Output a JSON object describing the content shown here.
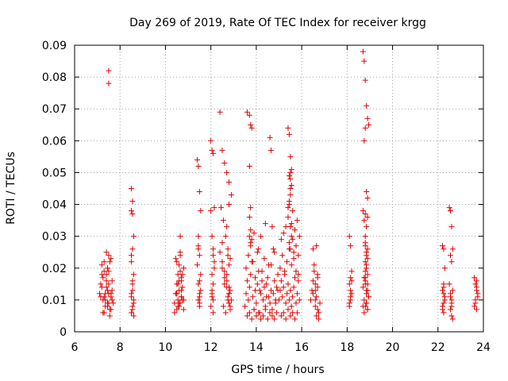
{
  "chart_data": {
    "type": "scatter",
    "title": "Day 269 of 2019, Rate Of TEC Index for receiver krgg",
    "xlabel": "GPS time / hours",
    "ylabel": "ROTI / TECUs",
    "xlim": [
      6,
      24
    ],
    "ylim": [
      0,
      0.09
    ],
    "x_ticks": [
      6,
      8,
      10,
      12,
      14,
      16,
      18,
      20,
      22,
      24
    ],
    "y_ticks": [
      0,
      0.01,
      0.02,
      0.03,
      0.04,
      0.05,
      0.06,
      0.07,
      0.08,
      0.09
    ],
    "x_tick_labels": [
      "6",
      "8",
      "10",
      "12",
      "14",
      "16",
      "18",
      "20",
      "22",
      "24"
    ],
    "y_tick_labels": [
      "0",
      "0.01",
      "0.02",
      "0.03",
      "0.04",
      "0.05",
      "0.06",
      "0.07",
      "0.08",
      "0.09"
    ],
    "grid": true,
    "marker": "plus",
    "color": "#e00000",
    "series": [
      {
        "x": [
          7.1,
          7.15,
          7.2,
          7.25,
          7.3,
          7.35,
          7.4,
          7.45,
          7.5,
          7.55,
          7.6,
          7.65,
          7.7,
          7.2,
          7.3,
          7.4,
          7.5,
          7.6,
          7.25,
          7.35,
          7.45,
          7.55,
          7.65,
          7.3,
          7.4,
          7.5,
          7.45,
          7.5,
          7.4,
          7.6,
          7.2,
          7.3,
          7.5,
          7.6,
          7.35,
          7.45,
          7.55,
          7.15,
          7.25,
          7.65,
          7.5,
          7.5,
          8.5,
          8.55,
          8.5,
          8.6,
          8.55,
          8.5,
          8.6,
          8.55,
          8.5,
          8.6,
          8.55,
          8.5,
          8.55,
          8.6,
          8.5,
          8.55,
          8.55,
          8.5,
          8.55,
          8.6,
          10.4,
          10.45,
          10.5,
          10.55,
          10.6,
          10.65,
          10.7,
          10.75,
          10.8,
          10.5,
          10.6,
          10.7,
          10.4,
          10.55,
          10.65,
          10.75,
          10.5,
          10.6,
          10.7,
          10.8,
          10.45,
          10.55,
          10.65,
          10.5,
          10.6,
          10.7,
          10.55,
          10.65,
          10.75,
          10.5,
          10.6,
          10.65,
          10.7,
          10.8,
          11.4,
          11.45,
          11.5,
          11.55,
          11.45,
          11.5,
          11.4,
          11.55,
          11.45,
          11.5,
          11.5,
          11.45,
          11.5,
          11.45,
          11.5,
          11.55,
          11.45,
          11.5,
          12.0,
          12.05,
          12.1,
          12.15,
          12.0,
          12.05,
          12.1,
          12.15,
          12.05,
          12.1,
          12.05,
          12.1,
          12.0,
          12.1,
          12.05,
          12.15,
          12.1,
          12.05,
          12.4,
          12.5,
          12.6,
          12.7,
          12.8,
          12.9,
          12.45,
          12.55,
          12.65,
          12.75,
          12.85,
          12.5,
          12.6,
          12.7,
          12.8,
          12.9,
          12.55,
          12.65,
          12.75,
          12.85,
          12.6,
          12.7,
          12.8,
          12.75,
          12.8,
          12.85,
          12.8,
          12.7,
          12.6,
          12.5,
          12.4,
          12.75,
          12.8,
          12.85,
          12.8,
          12.7,
          12.5,
          13.5,
          13.55,
          13.6,
          13.65,
          13.7,
          13.75,
          13.8,
          13.85,
          13.9,
          13.95,
          14.0,
          14.05,
          14.1,
          14.15,
          14.2,
          14.25,
          14.3,
          14.35,
          14.4,
          14.45,
          14.5,
          14.55,
          14.6,
          14.65,
          14.7,
          14.75,
          14.8,
          14.85,
          14.9,
          14.95,
          13.55,
          13.65,
          13.75,
          13.85,
          13.95,
          14.05,
          14.15,
          14.25,
          14.35,
          14.45,
          14.55,
          14.65,
          14.75,
          14.85,
          14.95,
          13.6,
          13.7,
          13.8,
          13.9,
          14.0,
          14.1,
          14.2,
          14.3,
          14.4,
          14.5,
          14.6,
          14.7,
          14.8,
          14.9,
          13.6,
          13.7,
          13.75,
          13.8,
          13.7,
          13.75,
          13.7,
          13.75,
          13.7,
          13.8,
          13.75,
          14.2,
          14.4,
          14.6,
          14.65,
          14.7,
          14.8,
          13.9,
          14.1,
          15.0,
          15.05,
          15.1,
          15.15,
          15.2,
          15.25,
          15.3,
          15.35,
          15.4,
          15.45,
          15.5,
          15.55,
          15.6,
          15.65,
          15.7,
          15.75,
          15.8,
          15.85,
          15.9,
          15.05,
          15.15,
          15.25,
          15.35,
          15.45,
          15.55,
          15.65,
          15.75,
          15.85,
          15.1,
          15.2,
          15.3,
          15.4,
          15.5,
          15.6,
          15.7,
          15.8,
          15.4,
          15.45,
          15.5,
          15.55,
          15.5,
          15.45,
          15.5,
          15.55,
          15.5,
          15.45,
          15.4,
          15.5,
          15.55,
          15.45,
          15.5,
          15.6,
          15.7,
          15.8,
          15.75,
          15.65,
          15.9,
          15.85,
          15.3,
          15.2,
          15.1,
          15.5,
          15.6,
          15.55,
          15.45,
          15.4,
          16.4,
          16.45,
          16.5,
          16.55,
          16.6,
          16.65,
          16.7,
          16.75,
          16.8,
          16.5,
          16.6,
          16.7,
          16.55,
          16.65,
          16.7,
          16.6,
          16.5,
          16.65,
          16.75,
          16.6,
          16.7,
          18.1,
          18.15,
          18.2,
          18.15,
          18.1,
          18.2,
          18.15,
          18.1,
          18.15,
          18.2,
          18.15,
          18.1,
          18.7,
          18.75,
          18.8,
          18.85,
          18.9,
          18.95,
          18.75,
          18.8,
          18.85,
          18.9,
          18.7,
          18.8,
          18.9,
          18.75,
          18.85,
          18.8,
          18.8,
          18.85,
          18.9,
          18.85,
          18.8,
          18.75,
          18.8,
          18.9,
          18.95,
          18.85,
          18.8,
          18.9,
          18.75,
          18.85,
          18.7,
          18.8,
          18.9,
          18.85,
          18.8,
          18.75,
          18.85,
          18.9,
          18.8,
          18.95,
          18.7,
          18.85,
          18.9,
          18.8,
          18.85,
          18.9,
          22.2,
          22.25,
          22.3,
          22.25,
          22.2,
          22.3,
          22.25,
          22.2,
          22.25,
          22.3,
          22.2,
          22.25,
          22.25,
          22.5,
          22.55,
          22.6,
          22.65,
          22.55,
          22.6,
          22.5,
          22.65,
          22.55,
          22.6,
          22.55,
          22.6,
          22.6,
          22.55,
          22.6,
          22.65,
          23.6,
          23.65,
          23.7,
          23.75,
          23.65,
          23.7,
          23.6,
          23.75,
          23.7,
          23.65,
          23.7
        ],
        "y": [
          0.012,
          0.015,
          0.018,
          0.01,
          0.022,
          0.008,
          0.025,
          0.013,
          0.019,
          0.007,
          0.011,
          0.016,
          0.009,
          0.021,
          0.006,
          0.014,
          0.024,
          0.012,
          0.017,
          0.01,
          0.02,
          0.005,
          0.013,
          0.011,
          0.016,
          0.009,
          0.008,
          0.012,
          0.018,
          0.023,
          0.014,
          0.019,
          0.015,
          0.007,
          0.012,
          0.009,
          0.022,
          0.011,
          0.006,
          0.01,
          0.082,
          0.078,
          0.045,
          0.041,
          0.038,
          0.03,
          0.026,
          0.022,
          0.018,
          0.015,
          0.012,
          0.01,
          0.008,
          0.006,
          0.007,
          0.009,
          0.011,
          0.013,
          0.037,
          0.024,
          0.016,
          0.005,
          0.009,
          0.012,
          0.015,
          0.018,
          0.021,
          0.024,
          0.013,
          0.01,
          0.007,
          0.022,
          0.016,
          0.011,
          0.006,
          0.008,
          0.019,
          0.014,
          0.012,
          0.009,
          0.017,
          0.02,
          0.023,
          0.01,
          0.025,
          0.007,
          0.013,
          0.011,
          0.015,
          0.009,
          0.018,
          0.012,
          0.008,
          0.03,
          0.016,
          0.01,
          0.054,
          0.052,
          0.044,
          0.038,
          0.027,
          0.024,
          0.021,
          0.018,
          0.015,
          0.012,
          0.009,
          0.01,
          0.008,
          0.026,
          0.016,
          0.013,
          0.03,
          0.011,
          0.06,
          0.057,
          0.056,
          0.039,
          0.038,
          0.03,
          0.026,
          0.022,
          0.018,
          0.015,
          0.012,
          0.01,
          0.008,
          0.006,
          0.013,
          0.02,
          0.024,
          0.011,
          0.069,
          0.057,
          0.053,
          0.05,
          0.047,
          0.043,
          0.039,
          0.035,
          0.03,
          0.026,
          0.023,
          0.02,
          0.017,
          0.014,
          0.012,
          0.01,
          0.008,
          0.006,
          0.011,
          0.013,
          0.015,
          0.018,
          0.021,
          0.024,
          0.009,
          0.007,
          0.012,
          0.016,
          0.019,
          0.022,
          0.025,
          0.01,
          0.014,
          0.008,
          0.04,
          0.033,
          0.028,
          0.008,
          0.012,
          0.016,
          0.01,
          0.014,
          0.018,
          0.022,
          0.011,
          0.007,
          0.013,
          0.009,
          0.015,
          0.019,
          0.006,
          0.012,
          0.016,
          0.01,
          0.014,
          0.008,
          0.011,
          0.017,
          0.021,
          0.009,
          0.013,
          0.007,
          0.012,
          0.016,
          0.01,
          0.014,
          0.018,
          0.02,
          0.024,
          0.028,
          0.022,
          0.017,
          0.025,
          0.013,
          0.019,
          0.023,
          0.015,
          0.011,
          0.021,
          0.026,
          0.009,
          0.013,
          0.005,
          0.006,
          0.004,
          0.007,
          0.005,
          0.006,
          0.004,
          0.005,
          0.007,
          0.004,
          0.006,
          0.005,
          0.004,
          0.006,
          0.069,
          0.068,
          0.065,
          0.064,
          0.052,
          0.039,
          0.036,
          0.032,
          0.03,
          0.029,
          0.027,
          0.03,
          0.034,
          0.061,
          0.057,
          0.033,
          0.025,
          0.031,
          0.026,
          0.01,
          0.013,
          0.016,
          0.011,
          0.014,
          0.018,
          0.009,
          0.012,
          0.015,
          0.01,
          0.013,
          0.008,
          0.011,
          0.014,
          0.017,
          0.009,
          0.012,
          0.016,
          0.01,
          0.02,
          0.024,
          0.019,
          0.022,
          0.026,
          0.021,
          0.023,
          0.019,
          0.018,
          0.005,
          0.006,
          0.004,
          0.007,
          0.005,
          0.006,
          0.004,
          0.006,
          0.064,
          0.062,
          0.055,
          0.051,
          0.05,
          0.049,
          0.048,
          0.046,
          0.043,
          0.04,
          0.036,
          0.033,
          0.03,
          0.028,
          0.026,
          0.029,
          0.032,
          0.035,
          0.027,
          0.025,
          0.03,
          0.024,
          0.033,
          0.031,
          0.029,
          0.045,
          0.038,
          0.034,
          0.041,
          0.039,
          0.01,
          0.013,
          0.016,
          0.019,
          0.008,
          0.011,
          0.014,
          0.006,
          0.009,
          0.012,
          0.015,
          0.018,
          0.021,
          0.005,
          0.007,
          0.01,
          0.026,
          0.027,
          0.004,
          0.013,
          0.017,
          0.03,
          0.027,
          0.019,
          0.017,
          0.015,
          0.012,
          0.01,
          0.008,
          0.013,
          0.016,
          0.011,
          0.009,
          0.088,
          0.085,
          0.079,
          0.071,
          0.067,
          0.065,
          0.06,
          0.064,
          0.044,
          0.042,
          0.038,
          0.037,
          0.036,
          0.035,
          0.033,
          0.03,
          0.027,
          0.025,
          0.023,
          0.021,
          0.019,
          0.017,
          0.015,
          0.013,
          0.011,
          0.009,
          0.008,
          0.007,
          0.006,
          0.012,
          0.014,
          0.016,
          0.018,
          0.02,
          0.022,
          0.01,
          0.024,
          0.026,
          0.028,
          0.011,
          0.008,
          0.013,
          0.015,
          0.017,
          0.009,
          0.007,
          0.027,
          0.026,
          0.02,
          0.015,
          0.013,
          0.011,
          0.009,
          0.008,
          0.012,
          0.01,
          0.007,
          0.014,
          0.006,
          0.039,
          0.038,
          0.033,
          0.026,
          0.024,
          0.022,
          0.015,
          0.013,
          0.011,
          0.009,
          0.007,
          0.005,
          0.01,
          0.012,
          0.008,
          0.004,
          0.017,
          0.015,
          0.013,
          0.011,
          0.009,
          0.016,
          0.008,
          0.012,
          0.014,
          0.01,
          0.007
        ]
      }
    ]
  }
}
